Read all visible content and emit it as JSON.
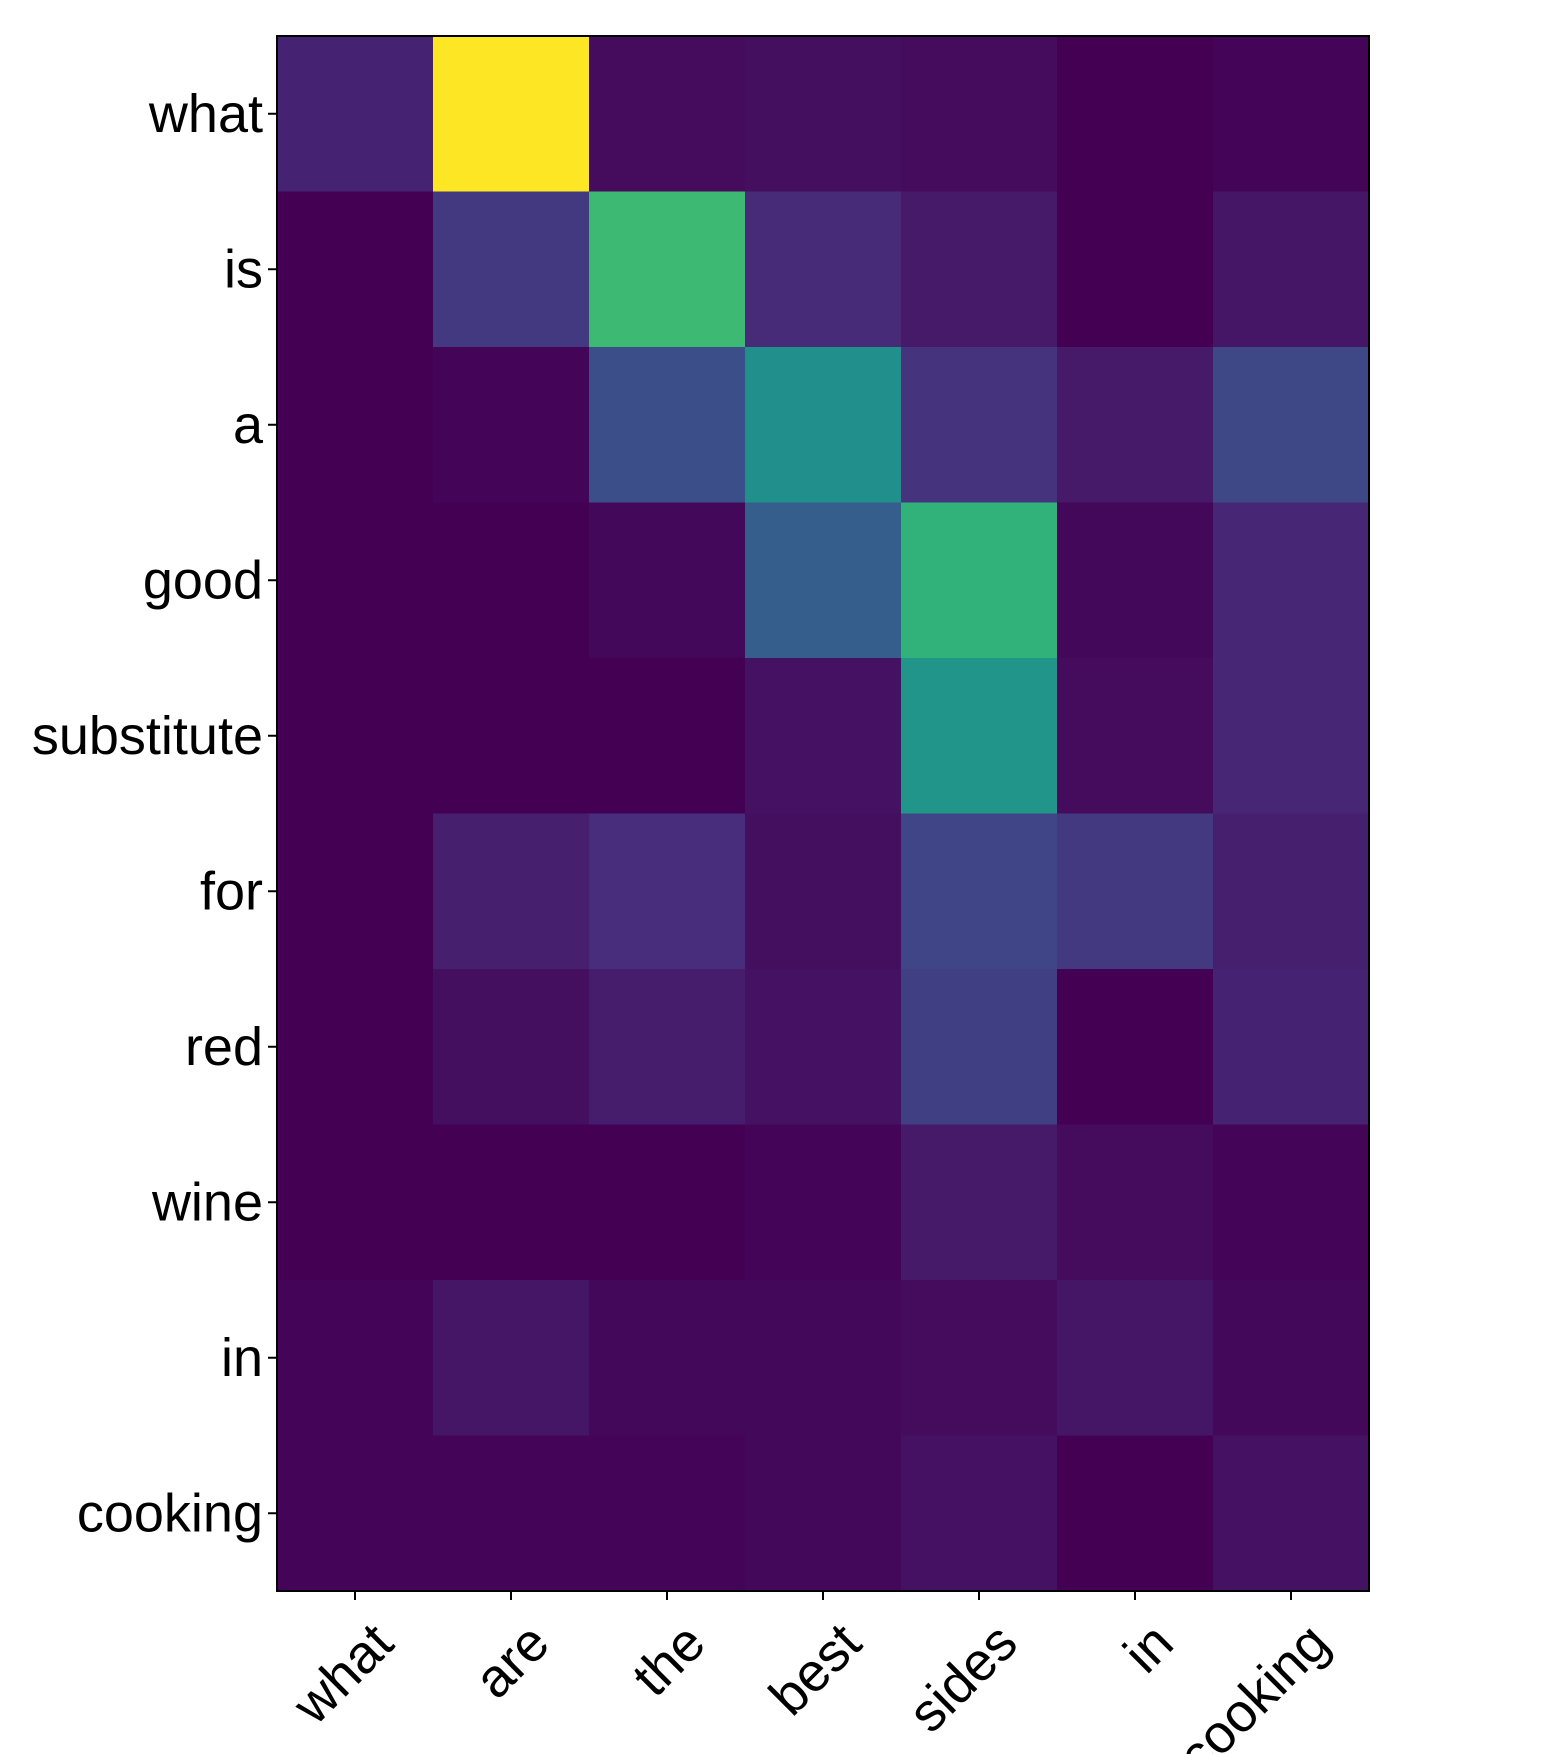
{
  "chart_data": {
    "type": "heatmap",
    "colormap": "viridis",
    "colorbar": false,
    "grid": false,
    "x_labels": [
      "what",
      "are",
      "the",
      "best",
      "sides",
      "in",
      "cooking"
    ],
    "y_labels": [
      "what",
      "is",
      "a",
      "good",
      "substitute",
      "for",
      "red",
      "wine",
      "in",
      "cooking"
    ],
    "values": [
      [
        0.1,
        1.0,
        0.03,
        0.04,
        0.03,
        0.0,
        0.01
      ],
      [
        0.0,
        0.17,
        0.68,
        0.12,
        0.07,
        0.0,
        0.06
      ],
      [
        0.0,
        0.01,
        0.24,
        0.5,
        0.15,
        0.07,
        0.22
      ],
      [
        0.0,
        0.0,
        0.02,
        0.3,
        0.65,
        0.02,
        0.11
      ],
      [
        0.0,
        0.0,
        0.0,
        0.05,
        0.52,
        0.03,
        0.11
      ],
      [
        0.0,
        0.09,
        0.13,
        0.04,
        0.21,
        0.17,
        0.09
      ],
      [
        0.0,
        0.04,
        0.08,
        0.05,
        0.19,
        0.0,
        0.1
      ],
      [
        0.0,
        0.0,
        0.0,
        0.01,
        0.07,
        0.03,
        0.01
      ],
      [
        0.01,
        0.06,
        0.02,
        0.02,
        0.03,
        0.06,
        0.02
      ],
      [
        0.01,
        0.01,
        0.01,
        0.02,
        0.05,
        0.0,
        0.05
      ]
    ],
    "title": "",
    "xlabel": "",
    "ylabel": ""
  }
}
